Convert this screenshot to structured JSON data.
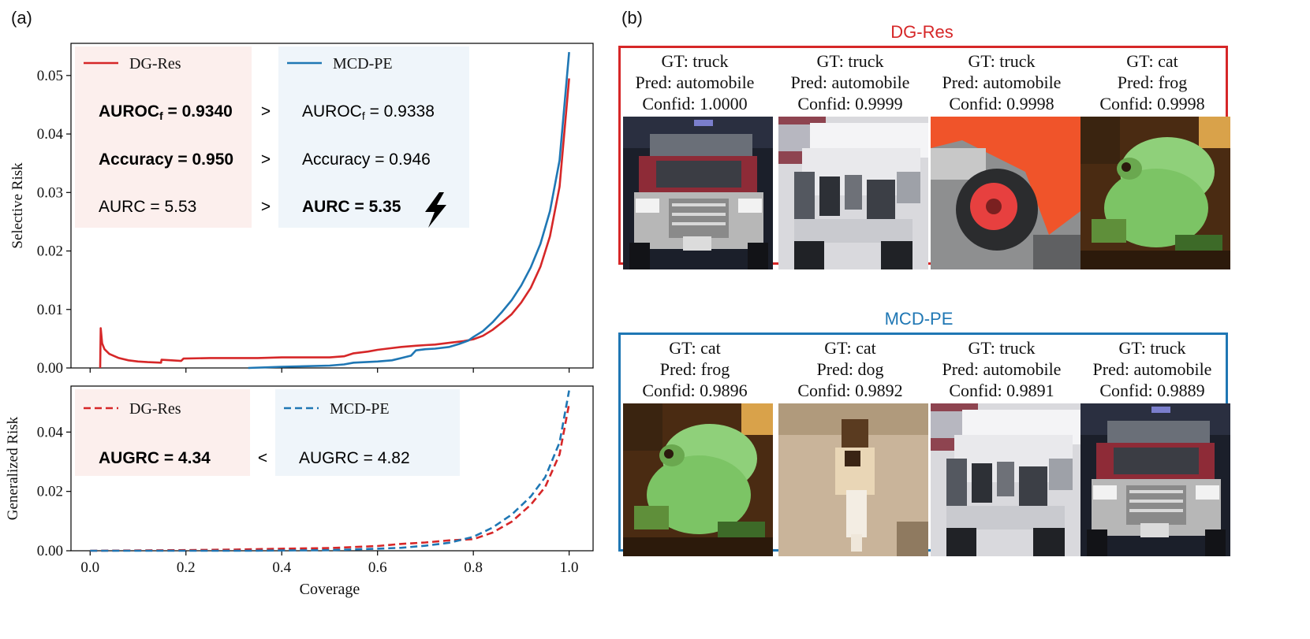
{
  "panel_labels": {
    "a": "(a)",
    "b": "(b)"
  },
  "colors": {
    "dg_res": "#d62728",
    "mcd_pe": "#1f77b4",
    "dg_box_bg": "#fcefed",
    "mcd_box_bg": "#eff5fa"
  },
  "chart_data": [
    {
      "type": "line",
      "xlabel": "",
      "ylabel": "Selective Risk",
      "xlim": [
        -0.04,
        1.05
      ],
      "ylim": [
        0,
        0.0555
      ],
      "x_ticks": [
        "0.0",
        "0.2",
        "0.4",
        "0.6",
        "0.8",
        "1.0"
      ],
      "y_ticks": [
        "0.00",
        "0.01",
        "0.02",
        "0.03",
        "0.04",
        "0.05"
      ],
      "line_style": "solid",
      "legend": [
        "DG-Res",
        "MCD-PE"
      ],
      "series": [
        {
          "name": "DG-Res",
          "x": [
            0.021,
            0.022,
            0.025,
            0.03,
            0.04,
            0.06,
            0.08,
            0.1,
            0.12,
            0.148,
            0.149,
            0.17,
            0.19,
            0.195,
            0.25,
            0.3,
            0.35,
            0.4,
            0.45,
            0.5,
            0.53,
            0.55,
            0.58,
            0.6,
            0.62,
            0.65,
            0.68,
            0.7,
            0.72,
            0.75,
            0.78,
            0.8,
            0.82,
            0.84,
            0.86,
            0.88,
            0.9,
            0.92,
            0.94,
            0.96,
            0.98,
            1.0
          ],
          "y": [
            0.0,
            0.0068,
            0.0042,
            0.0032,
            0.0024,
            0.0017,
            0.0013,
            0.0011,
            0.001,
            0.0009,
            0.0014,
            0.0013,
            0.0012,
            0.0016,
            0.0017,
            0.0017,
            0.0017,
            0.0018,
            0.0018,
            0.0018,
            0.002,
            0.0025,
            0.0028,
            0.0031,
            0.0033,
            0.0036,
            0.0038,
            0.0039,
            0.004,
            0.0043,
            0.0046,
            0.0049,
            0.0055,
            0.0065,
            0.0078,
            0.0092,
            0.0112,
            0.0137,
            0.0173,
            0.0225,
            0.031,
            0.0495
          ]
        },
        {
          "name": "MCD-PE",
          "x": [
            0.33,
            0.4,
            0.5,
            0.53,
            0.55,
            0.6,
            0.63,
            0.65,
            0.67,
            0.68,
            0.7,
            0.72,
            0.75,
            0.77,
            0.79,
            0.8,
            0.82,
            0.84,
            0.86,
            0.88,
            0.9,
            0.92,
            0.94,
            0.96,
            0.98,
            1.0
          ],
          "y": [
            0.0,
            0.0002,
            0.0004,
            0.0006,
            0.0009,
            0.0011,
            0.0013,
            0.0017,
            0.0021,
            0.003,
            0.0032,
            0.0033,
            0.0036,
            0.0041,
            0.0047,
            0.0053,
            0.0063,
            0.0078,
            0.0096,
            0.0116,
            0.0141,
            0.0172,
            0.0212,
            0.0268,
            0.0355,
            0.054
          ]
        }
      ],
      "info_boxes": [
        {
          "series": "DG-Res",
          "lines": [
            {
              "label": "AUROC",
              "sub": "f",
              "value": " = 0.9340",
              "bold": true
            },
            {
              "label": "Accuracy",
              "sub": "",
              "value": " = 0.950",
              "bold": true
            },
            {
              "label": "AURC",
              "sub": "",
              "value": " = 5.53",
              "bold": false
            }
          ]
        },
        {
          "series": "MCD-PE",
          "lines": [
            {
              "label": "AUROC",
              "sub": "f",
              "value": " = 0.9338",
              "bold": false
            },
            {
              "label": "Accuracy",
              "sub": "",
              "value": " = 0.946",
              "bold": false
            },
            {
              "label": "AURC",
              "sub": "",
              "value": " = 5.35",
              "bold": true
            }
          ]
        }
      ],
      "comparators": [
        ">",
        ">",
        ">"
      ],
      "highlight_icon": "lightning-bolt-icon"
    },
    {
      "type": "line",
      "xlabel": "Coverage",
      "ylabel": "Generalized Risk",
      "xlim": [
        -0.04,
        1.05
      ],
      "ylim": [
        0,
        0.0555
      ],
      "x_ticks": [
        "0.0",
        "0.2",
        "0.4",
        "0.6",
        "0.8",
        "1.0"
      ],
      "y_ticks": [
        "0.00",
        "0.02",
        "0.04"
      ],
      "line_style": "dashed",
      "legend": [
        "DG-Res",
        "MCD-PE"
      ],
      "series": [
        {
          "name": "DG-Res",
          "x": [
            0.0,
            0.1,
            0.2,
            0.3,
            0.4,
            0.5,
            0.6,
            0.65,
            0.7,
            0.75,
            0.8,
            0.84,
            0.88,
            0.92,
            0.95,
            0.98,
            1.0
          ],
          "y": [
            0.0,
            0.0001,
            0.0002,
            0.0004,
            0.0007,
            0.0009,
            0.0016,
            0.0023,
            0.0028,
            0.0035,
            0.0039,
            0.0061,
            0.0098,
            0.0155,
            0.0215,
            0.0325,
            0.0495
          ]
        },
        {
          "name": "MCD-PE",
          "x": [
            0.0,
            0.1,
            0.2,
            0.3,
            0.33,
            0.4,
            0.5,
            0.6,
            0.65,
            0.7,
            0.75,
            0.8,
            0.84,
            0.88,
            0.92,
            0.95,
            0.98,
            1.0
          ],
          "y": [
            0.0,
            0.0,
            0.0,
            0.0,
            0.0,
            0.0001,
            0.0002,
            0.0007,
            0.001,
            0.0017,
            0.0027,
            0.0047,
            0.0078,
            0.0122,
            0.0183,
            0.0248,
            0.0365,
            0.054
          ]
        }
      ],
      "info_boxes": [
        {
          "series": "DG-Res",
          "lines": [
            {
              "label": "AUGRC",
              "sub": "",
              "value": " = 4.34",
              "bold": true
            }
          ]
        },
        {
          "series": "MCD-PE",
          "lines": [
            {
              "label": "AUGRC",
              "sub": "",
              "value": " = 4.82",
              "bold": false
            }
          ]
        }
      ],
      "comparators": [
        "<"
      ]
    }
  ],
  "groups": [
    {
      "title": "DG-Res",
      "color": "#d62728",
      "samples": [
        {
          "gt": "GT: truck",
          "pred": "Pred: automobile",
          "conf": "Confid: 1.0000",
          "thumb": "truck-front-icon"
        },
        {
          "gt": "GT: truck",
          "pred": "Pred: automobile",
          "conf": "Confid: 0.9999",
          "thumb": "white-truck-icon"
        },
        {
          "gt": "GT: truck",
          "pred": "Pred: automobile",
          "conf": "Confid: 0.9998",
          "thumb": "red-truck-wheel-icon"
        },
        {
          "gt": "GT: cat",
          "pred": "Pred: frog",
          "conf": "Confid: 0.9998",
          "thumb": "frog-icon"
        }
      ]
    },
    {
      "title": "MCD-PE",
      "color": "#1f77b4",
      "samples": [
        {
          "gt": "GT: cat",
          "pred": "Pred: frog",
          "conf": "Confid: 0.9896",
          "thumb": "frog-icon"
        },
        {
          "gt": "GT: cat",
          "pred": "Pred: dog",
          "conf": "Confid: 0.9892",
          "thumb": "blurry-animal-icon"
        },
        {
          "gt": "GT: truck",
          "pred": "Pred: automobile",
          "conf": "Confid: 0.9891",
          "thumb": "white-truck-icon"
        },
        {
          "gt": "GT: truck",
          "pred": "Pred: automobile",
          "conf": "Confid: 0.9889",
          "thumb": "truck-front-icon"
        }
      ]
    }
  ]
}
